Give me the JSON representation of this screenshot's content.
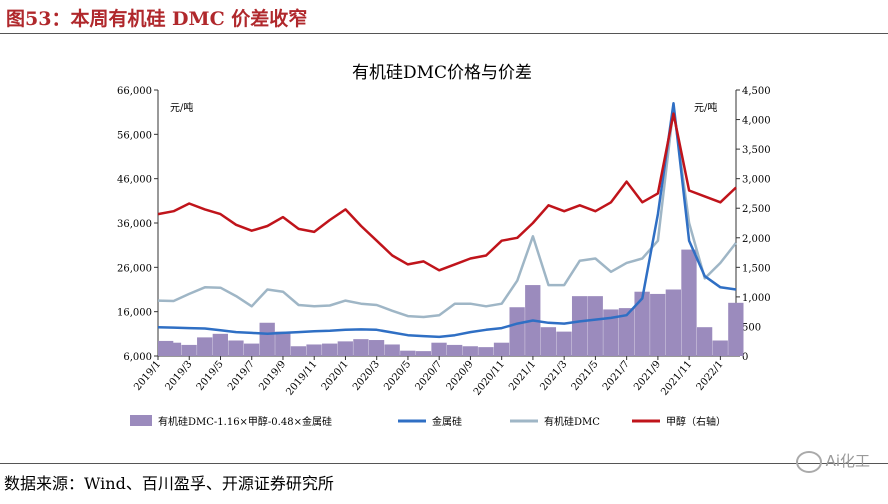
{
  "figure_title": "图53：本周有机硅 DMC 价差收窄",
  "source": "数据来源：Wind、百川盈孚、开源证券研究所",
  "watermark": "Ai化工",
  "colors": {
    "title": "#b0282c",
    "spread": "#9b8bbd",
    "metal": "#2f6fc4",
    "dmc": "#9fb6c6",
    "methanol": "#c0141b"
  },
  "chart_data": {
    "type": "line",
    "title": "有机硅DMC价格与价差",
    "left_unit": "元/吨",
    "right_unit": "元/吨",
    "y_left_ticks": [
      "6,000",
      "16,000",
      "26,000",
      "36,000",
      "46,000",
      "56,000",
      "66,000"
    ],
    "y_right_ticks": [
      "0",
      "500",
      "1,000",
      "1,500",
      "2,000",
      "2,500",
      "3,000",
      "3,500",
      "4,000",
      "4,500"
    ],
    "ylim_left": [
      6000,
      66000
    ],
    "ylim_right": [
      0,
      4500
    ],
    "x_range": [
      "2019/1",
      "2022/2"
    ],
    "x_ticks": [
      "2019/1",
      "2019/3",
      "2019/5",
      "2019/7",
      "2019/9",
      "2019/11",
      "2020/1",
      "2020/3",
      "2020/5",
      "2020/7",
      "2020/9",
      "2020/11",
      "2021/1",
      "2021/3",
      "2021/5",
      "2021/7",
      "2021/9",
      "2021/11",
      "2022/1"
    ],
    "legend_position": "bottom",
    "series": [
      {
        "name": "有机硅DMC-1.16×甲醇-0.48×金属硅",
        "type": "area",
        "axis": "left",
        "points": [
          [
            "2019/1",
            9400
          ],
          [
            "2019/2",
            9000
          ],
          [
            "2019/3",
            8500
          ],
          [
            "2019/4",
            10200
          ],
          [
            "2019/5",
            11000
          ],
          [
            "2019/6",
            9500
          ],
          [
            "2019/7",
            8800
          ],
          [
            "2019/8",
            13500
          ],
          [
            "2019/9",
            11500
          ],
          [
            "2019/10",
            8200
          ],
          [
            "2019/11",
            8600
          ],
          [
            "2019/12",
            8800
          ],
          [
            "2020/1",
            9300
          ],
          [
            "2020/2",
            9800
          ],
          [
            "2020/3",
            9600
          ],
          [
            "2020/4",
            8600
          ],
          [
            "2020/5",
            7200
          ],
          [
            "2020/6",
            7100
          ],
          [
            "2020/7",
            9000
          ],
          [
            "2020/8",
            8500
          ],
          [
            "2020/9",
            8200
          ],
          [
            "2020/10",
            8000
          ],
          [
            "2020/11",
            9000
          ],
          [
            "2020/12",
            17000
          ],
          [
            "2021/1",
            22000
          ],
          [
            "2021/2",
            12500
          ],
          [
            "2021/3",
            11500
          ],
          [
            "2021/4",
            19500
          ],
          [
            "2021/5",
            19500
          ],
          [
            "2021/6",
            16500
          ],
          [
            "2021/7",
            16800
          ],
          [
            "2021/8",
            20500
          ],
          [
            "2021/9",
            20000
          ],
          [
            "2021/10",
            21000
          ],
          [
            "2021/11",
            30000
          ],
          [
            "2021/12",
            12500
          ],
          [
            "2022/1",
            9500
          ],
          [
            "2022/2",
            18000
          ]
        ]
      },
      {
        "name": "金属硅",
        "type": "line",
        "axis": "left",
        "points": [
          [
            "2019/1",
            12500
          ],
          [
            "2019/2",
            12400
          ],
          [
            "2019/3",
            12300
          ],
          [
            "2019/4",
            12200
          ],
          [
            "2019/5",
            11800
          ],
          [
            "2019/6",
            11400
          ],
          [
            "2019/7",
            11200
          ],
          [
            "2019/8",
            11000
          ],
          [
            "2019/9",
            11200
          ],
          [
            "2019/10",
            11400
          ],
          [
            "2019/11",
            11600
          ],
          [
            "2019/12",
            11700
          ],
          [
            "2020/1",
            11900
          ],
          [
            "2020/2",
            12000
          ],
          [
            "2020/3",
            11900
          ],
          [
            "2020/4",
            11300
          ],
          [
            "2020/5",
            10700
          ],
          [
            "2020/6",
            10500
          ],
          [
            "2020/7",
            10300
          ],
          [
            "2020/8",
            10700
          ],
          [
            "2020/9",
            11400
          ],
          [
            "2020/10",
            11900
          ],
          [
            "2020/11",
            12300
          ],
          [
            "2020/12",
            13300
          ],
          [
            "2021/1",
            14000
          ],
          [
            "2021/2",
            13500
          ],
          [
            "2021/3",
            13300
          ],
          [
            "2021/4",
            13800
          ],
          [
            "2021/5",
            14200
          ],
          [
            "2021/6",
            14600
          ],
          [
            "2021/7",
            15200
          ],
          [
            "2021/8",
            19000
          ],
          [
            "2021/9",
            38000
          ],
          [
            "2021/10",
            63000
          ],
          [
            "2021/11",
            32000
          ],
          [
            "2021/12",
            24000
          ],
          [
            "2022/1",
            21500
          ],
          [
            "2022/2",
            21000
          ]
        ]
      },
      {
        "name": "有机硅DMC",
        "type": "line",
        "axis": "left",
        "points": [
          [
            "2019/1",
            18500
          ],
          [
            "2019/2",
            18400
          ],
          [
            "2019/3",
            20000
          ],
          [
            "2019/4",
            21500
          ],
          [
            "2019/5",
            21400
          ],
          [
            "2019/6",
            19500
          ],
          [
            "2019/7",
            17200
          ],
          [
            "2019/8",
            21000
          ],
          [
            "2019/9",
            20500
          ],
          [
            "2019/10",
            17500
          ],
          [
            "2019/11",
            17200
          ],
          [
            "2019/12",
            17400
          ],
          [
            "2020/1",
            18500
          ],
          [
            "2020/2",
            17800
          ],
          [
            "2020/3",
            17500
          ],
          [
            "2020/4",
            16200
          ],
          [
            "2020/5",
            15000
          ],
          [
            "2020/6",
            14800
          ],
          [
            "2020/7",
            15200
          ],
          [
            "2020/8",
            17800
          ],
          [
            "2020/9",
            17800
          ],
          [
            "2020/10",
            17200
          ],
          [
            "2020/11",
            17800
          ],
          [
            "2020/12",
            23000
          ],
          [
            "2021/1",
            33000
          ],
          [
            "2021/2",
            22000
          ],
          [
            "2021/3",
            22000
          ],
          [
            "2021/4",
            27500
          ],
          [
            "2021/5",
            28000
          ],
          [
            "2021/6",
            25000
          ],
          [
            "2021/7",
            27000
          ],
          [
            "2021/8",
            28000
          ],
          [
            "2021/9",
            32000
          ],
          [
            "2021/10",
            62000
          ],
          [
            "2021/11",
            36000
          ],
          [
            "2021/12",
            23500
          ],
          [
            "2022/1",
            27000
          ],
          [
            "2022/2",
            31500
          ]
        ]
      },
      {
        "name": "甲醇（右轴）",
        "type": "line",
        "axis": "right",
        "points": [
          [
            "2019/1",
            2400
          ],
          [
            "2019/2",
            2450
          ],
          [
            "2019/3",
            2580
          ],
          [
            "2019/4",
            2480
          ],
          [
            "2019/5",
            2400
          ],
          [
            "2019/6",
            2220
          ],
          [
            "2019/7",
            2120
          ],
          [
            "2019/8",
            2200
          ],
          [
            "2019/9",
            2350
          ],
          [
            "2019/10",
            2150
          ],
          [
            "2019/11",
            2100
          ],
          [
            "2019/12",
            2300
          ],
          [
            "2020/1",
            2480
          ],
          [
            "2020/2",
            2200
          ],
          [
            "2020/3",
            1950
          ],
          [
            "2020/4",
            1700
          ],
          [
            "2020/5",
            1550
          ],
          [
            "2020/6",
            1600
          ],
          [
            "2020/7",
            1450
          ],
          [
            "2020/8",
            1550
          ],
          [
            "2020/9",
            1650
          ],
          [
            "2020/10",
            1700
          ],
          [
            "2020/11",
            1950
          ],
          [
            "2020/12",
            2000
          ],
          [
            "2021/1",
            2250
          ],
          [
            "2021/2",
            2550
          ],
          [
            "2021/3",
            2450
          ],
          [
            "2021/4",
            2550
          ],
          [
            "2021/5",
            2450
          ],
          [
            "2021/6",
            2600
          ],
          [
            "2021/7",
            2950
          ],
          [
            "2021/8",
            2600
          ],
          [
            "2021/9",
            2750
          ],
          [
            "2021/10",
            4100
          ],
          [
            "2021/11",
            2800
          ],
          [
            "2021/12",
            2700
          ],
          [
            "2022/1",
            2600
          ],
          [
            "2022/2",
            2850
          ]
        ]
      }
    ]
  }
}
